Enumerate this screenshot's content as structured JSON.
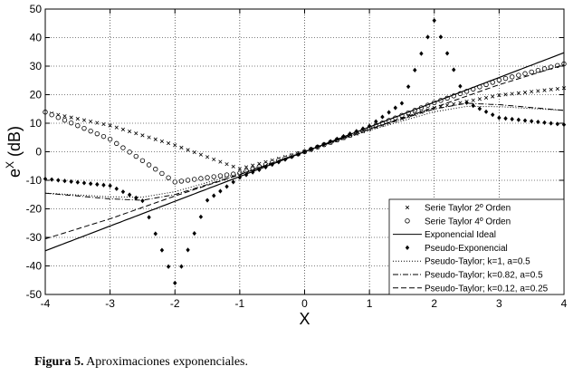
{
  "chart_data": {
    "type": "line",
    "title": "",
    "xlabel": "X",
    "ylabel_base": "e",
    "ylabel_sup": "X",
    "ylabel_unit": " (dB)",
    "xlim": [
      -4,
      4
    ],
    "ylim": [
      -50,
      50
    ],
    "x_ticks": [
      -4,
      -3,
      -2,
      -1,
      0,
      1,
      2,
      3,
      4
    ],
    "y_ticks": [
      -50,
      -40,
      -30,
      -20,
      -10,
      0,
      10,
      20,
      30,
      40,
      50
    ],
    "grid": true,
    "legend_position": "bottom-right",
    "series": [
      {
        "name": "Serie Taylor 2º Orden",
        "style": "cross-markers",
        "x": [
          -4,
          -3,
          -2,
          -1,
          0,
          1,
          2,
          3,
          4
        ],
        "y": [
          13.9,
          9.2,
          2.3,
          -6.0,
          0.0,
          7.9,
          15.4,
          19.8,
          22.3
        ]
      },
      {
        "name": "Serie Taylor 4º Orden",
        "style": "circle-markers",
        "x": [
          -4,
          -3,
          -2,
          -1,
          0,
          1,
          2,
          3,
          4
        ],
        "y": [
          13.9,
          4.4,
          -10.6,
          -7.5,
          0.0,
          8.3,
          17.2,
          25.1,
          30.8
        ]
      },
      {
        "name": "Exponencial Ideal",
        "style": "solid",
        "x": [
          -4,
          0,
          4
        ],
        "y": [
          -34.7,
          0.0,
          34.7
        ]
      },
      {
        "name": "Pseudo-Exponencial",
        "style": "diamond-markers",
        "x": [
          -4,
          -3,
          -2.5,
          -2,
          -1.5,
          -1,
          0,
          1,
          1.5,
          2,
          2.5,
          3,
          4
        ],
        "y": [
          -9.5,
          -11.9,
          -17.2,
          -46.0,
          -17.0,
          -9.0,
          0.0,
          9.0,
          17.0,
          46.0,
          17.2,
          11.9,
          9.5
        ]
      },
      {
        "name": "Pseudo-Taylor; k=1, a=0.5",
        "style": "dotted",
        "x": [
          -4,
          -3,
          -2.5,
          -2,
          -1,
          0,
          1,
          2,
          2.5,
          3,
          4
        ],
        "y": [
          -14.5,
          -15.8,
          -15.9,
          -14.0,
          -7.5,
          0.0,
          7.5,
          14.0,
          15.9,
          15.8,
          14.5
        ]
      },
      {
        "name": "Pseudo-Taylor; k=0.82, a=0.5",
        "style": "dash-dot",
        "x": [
          -4,
          -3,
          -2.5,
          -2,
          -1,
          0,
          1,
          2,
          2.5,
          3,
          4
        ],
        "y": [
          -14.5,
          -16.5,
          -17.0,
          -15.0,
          -8.0,
          0.0,
          8.0,
          15.0,
          17.0,
          16.5,
          14.5
        ]
      },
      {
        "name": "Pseudo-Taylor; k=0.12, a=0.25",
        "style": "dashed",
        "x": [
          -4,
          -3,
          -2,
          -1,
          0,
          1,
          2,
          3,
          4
        ],
        "y": [
          -30.5,
          -23.5,
          -15.5,
          -8.0,
          0.0,
          8.0,
          15.5,
          23.5,
          30.5
        ]
      }
    ]
  },
  "caption": {
    "label": "Figura 5.",
    "text": " Aproximaciones exponenciales."
  }
}
